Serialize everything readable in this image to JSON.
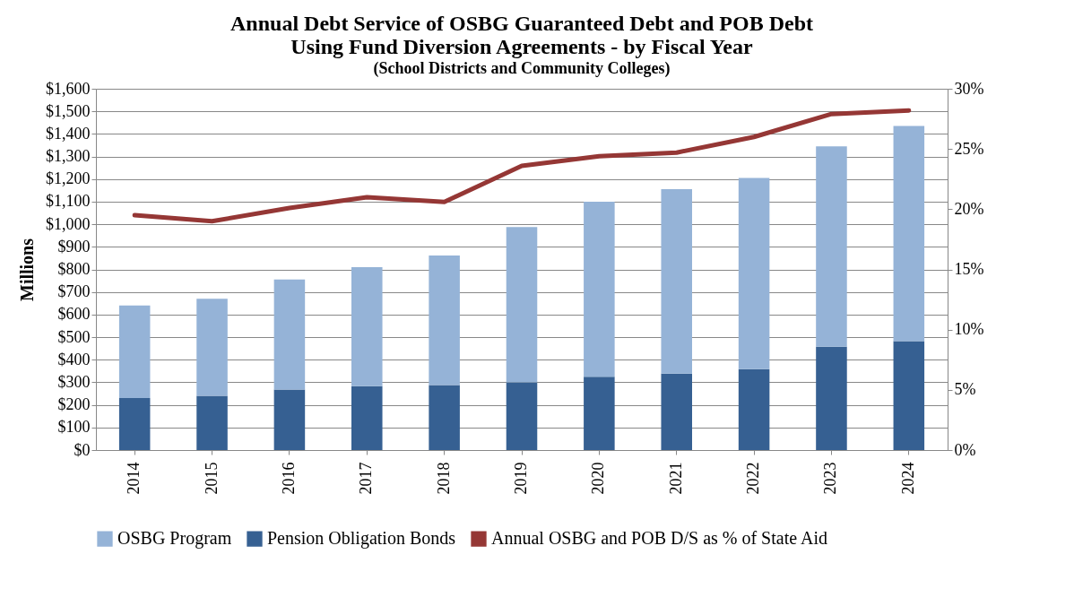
{
  "chart_data": {
    "type": "bar",
    "title": "Annual Debt Service of OSBG Guaranteed Debt and POB Debt\nUsing Fund Diversion Agreements  - by Fiscal Year",
    "subtitle": "(School Districts and Community Colleges)",
    "ylabel": "Millions",
    "categories": [
      "2014",
      "2015",
      "2016",
      "2017",
      "2018",
      "2019",
      "2020",
      "2021",
      "2022",
      "2023",
      "2024"
    ],
    "stacked": true,
    "series": [
      {
        "name": "Pension Obligation Bonds",
        "color": "#366092",
        "values": [
          230,
          240,
          268,
          283,
          288,
          300,
          325,
          338,
          358,
          458,
          482
        ]
      },
      {
        "name": "OSBG Program",
        "color": "#95b3d7",
        "values": [
          410,
          430,
          487,
          527,
          574,
          688,
          775,
          817,
          847,
          887,
          953
        ]
      },
      {
        "name": "Annual OSBG and POB D/S as % of State Aid",
        "type": "line",
        "axis": "y2",
        "color": "#953735",
        "values": [
          19.5,
          19.0,
          20.1,
          21.0,
          20.6,
          23.6,
          24.4,
          24.7,
          26.0,
          27.9,
          28.2
        ]
      }
    ],
    "ylim": [
      0,
      1600
    ],
    "yticks": [
      {
        "value": 0,
        "label": "$0"
      },
      {
        "value": 100,
        "label": "$100"
      },
      {
        "value": 200,
        "label": "$200"
      },
      {
        "value": 300,
        "label": "$300"
      },
      {
        "value": 400,
        "label": "$400"
      },
      {
        "value": 500,
        "label": "$500"
      },
      {
        "value": 600,
        "label": "$600"
      },
      {
        "value": 700,
        "label": "$700"
      },
      {
        "value": 800,
        "label": "$800"
      },
      {
        "value": 900,
        "label": "$900"
      },
      {
        "value": 1000,
        "label": "$1,000"
      },
      {
        "value": 1100,
        "label": "$1,100"
      },
      {
        "value": 1200,
        "label": "$1,200"
      },
      {
        "value": 1300,
        "label": "$1,300"
      },
      {
        "value": 1400,
        "label": "$1,400"
      },
      {
        "value": 1500,
        "label": "$1,500"
      },
      {
        "value": 1600,
        "label": "$1,600"
      }
    ],
    "y2lim": [
      0,
      30
    ],
    "y2ticks": [
      {
        "value": 0,
        "label": "0%"
      },
      {
        "value": 5,
        "label": "5%"
      },
      {
        "value": 10,
        "label": "10%"
      },
      {
        "value": 15,
        "label": "15%"
      },
      {
        "value": 20,
        "label": "20%"
      },
      {
        "value": 25,
        "label": "25%"
      },
      {
        "value": 30,
        "label": "30%"
      }
    ],
    "grid": "y",
    "legend": "bottom"
  }
}
